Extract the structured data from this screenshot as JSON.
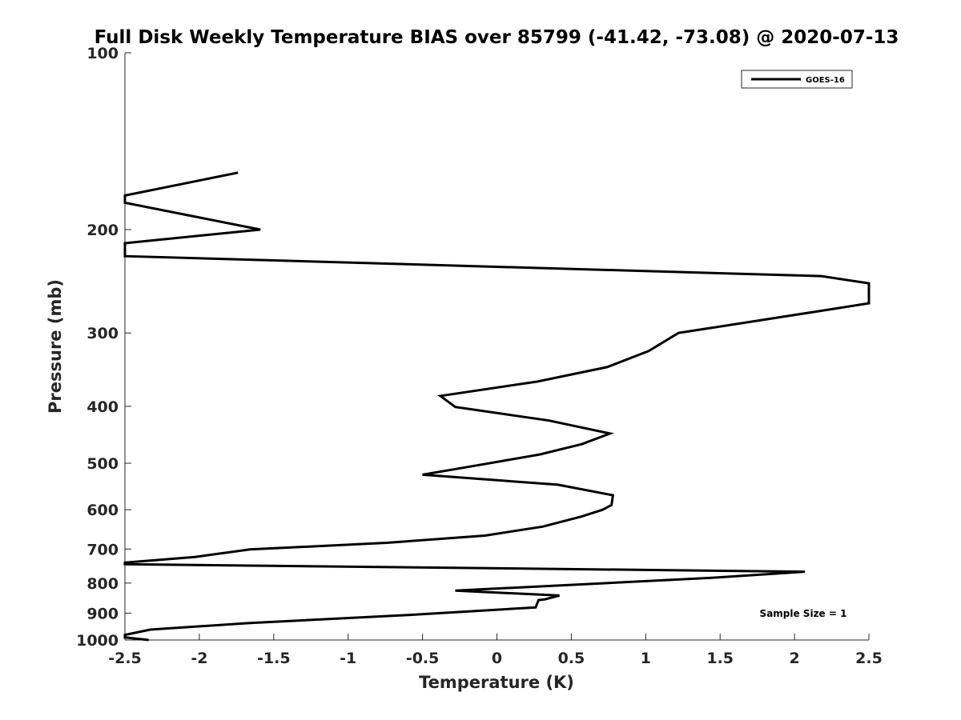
{
  "chart_data": {
    "type": "line",
    "title": "Full Disk Weekly Temperature BIAS over 85799 (-41.42, -73.08) @ 2020-07-13",
    "xlabel": "Temperature (K)",
    "ylabel": "Pressure (mb)",
    "xlim": [
      -2.5,
      2.5
    ],
    "ylim": [
      100,
      1000
    ],
    "y_scale": "log",
    "y_reversed": true,
    "x_ticks": [
      -2.5,
      -2,
      -1.5,
      -1,
      -0.5,
      0,
      0.5,
      1,
      1.5,
      2,
      2.5
    ],
    "x_tick_labels": [
      "-2.5",
      "-2",
      "-1.5",
      "-1",
      "-0.5",
      "0",
      "0.5",
      "1",
      "1.5",
      "2",
      "2.5"
    ],
    "y_ticks": [
      100,
      200,
      300,
      400,
      500,
      600,
      700,
      800,
      900,
      1000
    ],
    "y_tick_labels": [
      "100",
      "200",
      "300",
      "400",
      "500",
      "600",
      "700",
      "800",
      "900",
      "1000"
    ],
    "grid": false,
    "legend_position": "top-right",
    "annotation": "Sample Size = 1",
    "series": [
      {
        "name": "GOES-16",
        "color": "#000000",
        "points": [
          {
            "x": -1.74,
            "p": 160
          },
          {
            "x": -2.5,
            "p": 175
          },
          {
            "x": -2.5,
            "p": 180
          },
          {
            "x": -1.59,
            "p": 200
          },
          {
            "x": -2.5,
            "p": 211
          },
          {
            "x": -2.5,
            "p": 222
          },
          {
            "x": 2.18,
            "p": 240
          },
          {
            "x": 2.5,
            "p": 247
          },
          {
            "x": 2.5,
            "p": 267
          },
          {
            "x": 2.18,
            "p": 275
          },
          {
            "x": 1.22,
            "p": 300
          },
          {
            "x": 1.02,
            "p": 322
          },
          {
            "x": 0.74,
            "p": 343
          },
          {
            "x": 0.27,
            "p": 363
          },
          {
            "x": -0.38,
            "p": 384
          },
          {
            "x": -0.28,
            "p": 401
          },
          {
            "x": 0.35,
            "p": 423
          },
          {
            "x": 0.76,
            "p": 445
          },
          {
            "x": 0.57,
            "p": 464
          },
          {
            "x": 0.29,
            "p": 483
          },
          {
            "x": -0.09,
            "p": 502
          },
          {
            "x": -0.5,
            "p": 523
          },
          {
            "x": 0.41,
            "p": 544
          },
          {
            "x": 0.78,
            "p": 567
          },
          {
            "x": 0.77,
            "p": 589
          },
          {
            "x": 0.71,
            "p": 600
          },
          {
            "x": 0.57,
            "p": 616
          },
          {
            "x": 0.31,
            "p": 641
          },
          {
            "x": -0.08,
            "p": 664
          },
          {
            "x": -0.74,
            "p": 683
          },
          {
            "x": -1.66,
            "p": 701
          },
          {
            "x": -2.03,
            "p": 722
          },
          {
            "x": -2.5,
            "p": 738
          },
          {
            "x": -2.5,
            "p": 743
          },
          {
            "x": 2.07,
            "p": 765
          },
          {
            "x": 1.43,
            "p": 784
          },
          {
            "x": -0.28,
            "p": 824
          },
          {
            "x": 0.42,
            "p": 840
          },
          {
            "x": 0.32,
            "p": 853
          },
          {
            "x": 0.28,
            "p": 855
          },
          {
            "x": 0.26,
            "p": 880
          },
          {
            "x": -0.61,
            "p": 907
          },
          {
            "x": -1.67,
            "p": 936
          },
          {
            "x": -2.33,
            "p": 960
          },
          {
            "x": -2.5,
            "p": 980
          },
          {
            "x": -2.5,
            "p": 990
          },
          {
            "x": -2.34,
            "p": 1000
          }
        ]
      }
    ]
  }
}
